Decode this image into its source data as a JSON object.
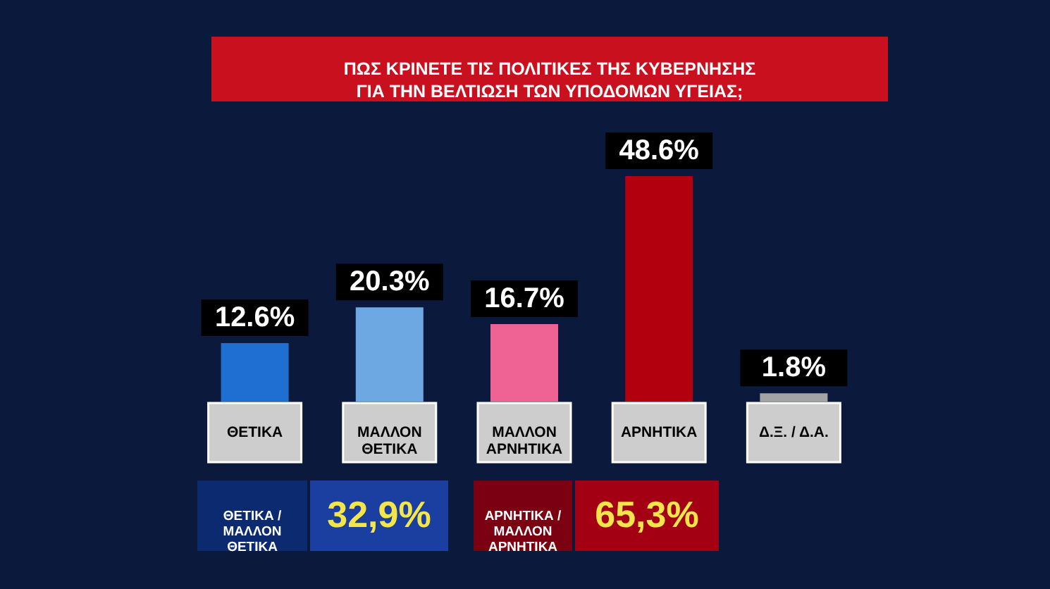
{
  "chart_data": {
    "type": "bar",
    "title": "ΠΩΣ ΚΡΙΝΕΤΕ ΤΙΣ ΠΟΛΙΤΙΚΕΣ ΤΗΣ ΚΥΒΕΡΝΗΣΗΣ\nΓΙΑ ΤΗΝ ΒΕΛΤΙΩΣΗ ΤΩΝ ΥΠΟΔΟΜΩΝ ΥΓΕΙΑΣ;",
    "categories": [
      "ΘΕΤΙΚΑ",
      "ΜΑΛΛΟΝ\nΘΕΤΙΚΑ",
      "ΜΑΛΛΟΝ\nΑΡΝΗΤΙΚΑ",
      "ΑΡΝΗΤΙΚΑ",
      "Δ.Ξ. / Δ.Α."
    ],
    "values": [
      12.6,
      20.3,
      16.7,
      48.6,
      1.8
    ],
    "colors": [
      "#1f6fd3",
      "#6ea8e2",
      "#ef6294",
      "#b3000f",
      "#a3a3a3"
    ],
    "value_labels": [
      "12.6%",
      "20.3%",
      "16.7%",
      "48.6%",
      "1.8%"
    ],
    "annotations": [
      "ΘΕΤΙΚΑ /\nΜΑΛΛΟΝ\nΘΕΤΙΚΑ",
      "32,9%",
      "ΑΡΝΗΤΙΚΑ /\nΜΑΛΛΟΝ\nΑΡΝΗΤΙΚΑ",
      "65,3%"
    ]
  }
}
